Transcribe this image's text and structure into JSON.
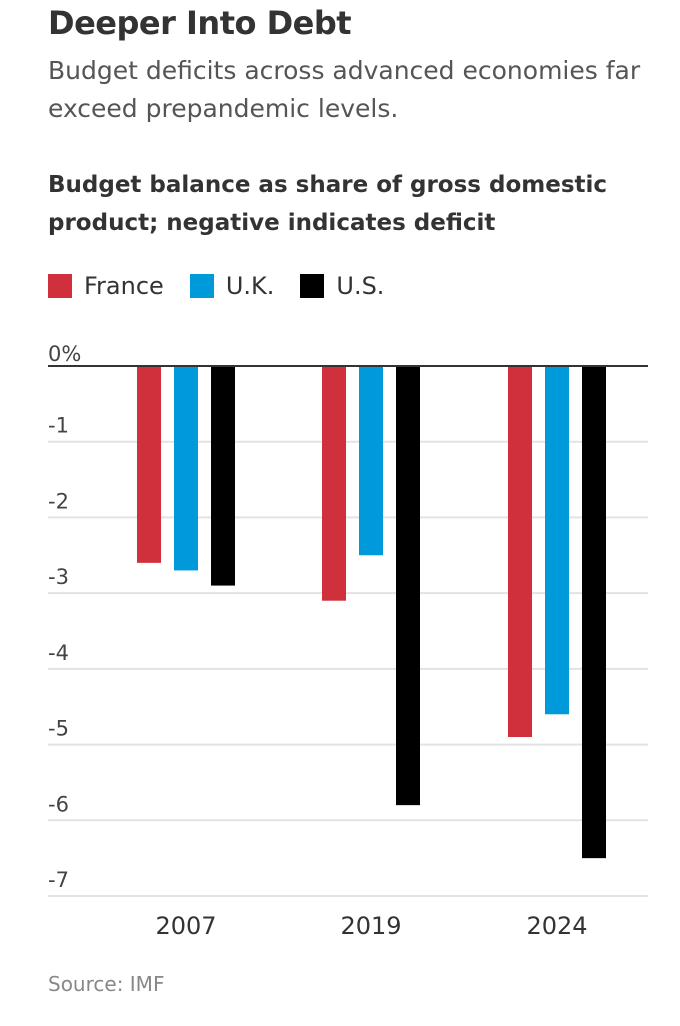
{
  "chart_data": {
    "type": "bar",
    "title": "Deeper Into Debt",
    "subtitle": "Budget deficits across advanced economies far exceed prepandemic levels.",
    "ylabel": "Budget balance as share of gross domestic product; negative indicates deficit",
    "xlabel": "",
    "categories": [
      "2007",
      "2019",
      "2024"
    ],
    "series": [
      {
        "name": "France",
        "color": "#cf303c",
        "values": [
          -2.6,
          -3.1,
          -4.9
        ]
      },
      {
        "name": "U.K.",
        "color": "#0099da",
        "values": [
          -2.7,
          -2.5,
          -4.6
        ]
      },
      {
        "name": "U.S.",
        "color": "#000000",
        "values": [
          -2.9,
          -5.8,
          -6.5
        ]
      }
    ],
    "ylim": [
      -7,
      0
    ],
    "yticks": [
      0,
      -1,
      -2,
      -3,
      -4,
      -5,
      -6,
      -7
    ],
    "ytick_labels": [
      "0%",
      "-1",
      "-2",
      "-3",
      "-4",
      "-5",
      "-6",
      "-7"
    ],
    "grid": true,
    "legend_placement": "top-left",
    "source": "Source: IMF"
  }
}
